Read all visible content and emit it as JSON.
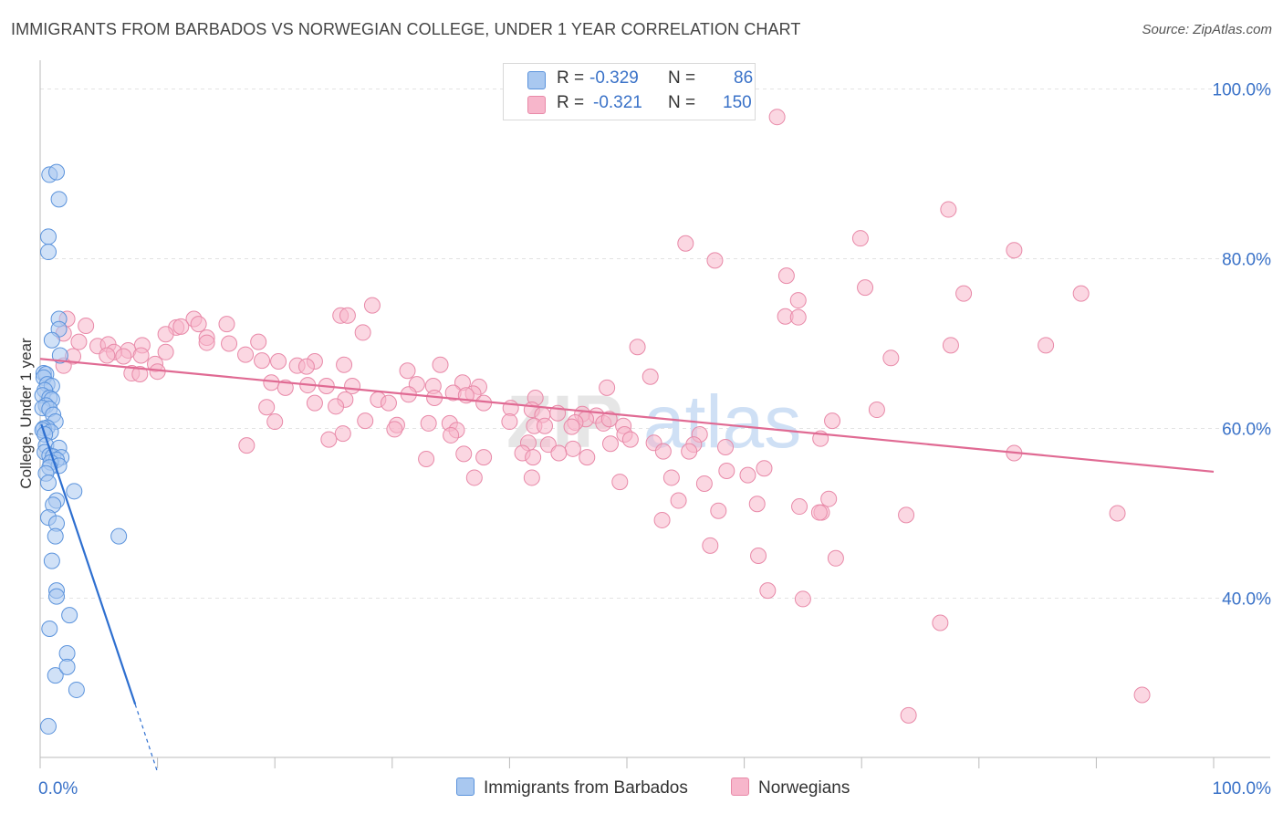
{
  "header": {
    "title": "IMMIGRANTS FROM BARBADOS VS NORWEGIAN COLLEGE, UNDER 1 YEAR CORRELATION CHART",
    "source": "Source: ZipAtlas.com"
  },
  "legend": {
    "rows": [
      {
        "r_label": "R =",
        "r_value": "-0.329",
        "n_label": "N =",
        "n_value": "86",
        "color": "#a9c8f0"
      },
      {
        "r_label": "R =",
        "r_value": "-0.321",
        "n_label": "N =",
        "n_value": "150",
        "color": "#f7b6cb"
      }
    ]
  },
  "bottom_legend": [
    {
      "label": "Immigrants from Barbados",
      "color": "#a9c8f0"
    },
    {
      "label": "Norwegians",
      "color": "#f7b6cb"
    }
  ],
  "colors": {
    "blue_fill": "#a9c8f0",
    "blue_stroke": "#5b93dc",
    "blue_line": "#2e6fd0",
    "pink_fill": "#f7b6cb",
    "pink_stroke": "#e889a8",
    "pink_line": "#e06a93",
    "axis_text": "#3a72c8",
    "grid": "#e3e3e3"
  },
  "chart_data": {
    "type": "scatter",
    "title": "IMMIGRANTS FROM BARBADOS VS NORWEGIAN COLLEGE, UNDER 1 YEAR CORRELATION CHART",
    "xlabel": "",
    "ylabel": "College, Under 1 year",
    "xlim": [
      0,
      100
    ],
    "ylim": [
      18,
      100
    ],
    "x_tick_labels": [
      "0.0%",
      "100.0%"
    ],
    "y_ticks": [
      40,
      60,
      80,
      100
    ],
    "y_tick_labels": [
      "40.0%",
      "60.0%",
      "80.0%",
      "100.0%"
    ],
    "grid": true,
    "legend_position": "top-center",
    "watermark": "ZIPatlas",
    "series": [
      {
        "name": "Immigrants from Barbados",
        "r": -0.329,
        "n": 86,
        "trend": {
          "x": [
            0.1,
            8.1
          ],
          "y": [
            60.5,
            27.5
          ],
          "dashed_to": [
            10.0,
            19.5
          ]
        },
        "points": [
          [
            0.8,
            89.9
          ],
          [
            1.4,
            90.2
          ],
          [
            1.6,
            87.0
          ],
          [
            0.7,
            82.6
          ],
          [
            0.7,
            80.8
          ],
          [
            1.6,
            72.9
          ],
          [
            1.6,
            71.7
          ],
          [
            1.7,
            68.6
          ],
          [
            1.0,
            70.4
          ],
          [
            0.3,
            66.5
          ],
          [
            0.5,
            66.4
          ],
          [
            0.3,
            66.0
          ],
          [
            0.6,
            65.2
          ],
          [
            1.0,
            65.0
          ],
          [
            0.4,
            64.5
          ],
          [
            0.2,
            63.9
          ],
          [
            0.8,
            63.6
          ],
          [
            1.0,
            63.4
          ],
          [
            0.5,
            62.7
          ],
          [
            0.2,
            62.4
          ],
          [
            0.8,
            62.3
          ],
          [
            1.1,
            61.6
          ],
          [
            1.3,
            60.8
          ],
          [
            0.6,
            60.1
          ],
          [
            0.3,
            60.0
          ],
          [
            0.2,
            59.8
          ],
          [
            0.9,
            59.6
          ],
          [
            0.4,
            59.3
          ],
          [
            0.5,
            58.0
          ],
          [
            1.6,
            57.7
          ],
          [
            0.4,
            57.2
          ],
          [
            0.8,
            56.8
          ],
          [
            1.1,
            56.7
          ],
          [
            1.8,
            56.6
          ],
          [
            1.4,
            56.3
          ],
          [
            0.9,
            56.0
          ],
          [
            1.6,
            55.6
          ],
          [
            0.8,
            55.4
          ],
          [
            0.5,
            54.7
          ],
          [
            0.7,
            53.6
          ],
          [
            2.9,
            52.6
          ],
          [
            1.4,
            51.5
          ],
          [
            1.1,
            51.0
          ],
          [
            0.7,
            49.5
          ],
          [
            1.4,
            48.8
          ],
          [
            6.7,
            47.3
          ],
          [
            1.3,
            47.3
          ],
          [
            1.0,
            44.4
          ],
          [
            1.4,
            40.9
          ],
          [
            1.4,
            40.2
          ],
          [
            2.5,
            38.0
          ],
          [
            0.8,
            36.4
          ],
          [
            2.3,
            33.5
          ],
          [
            1.3,
            30.9
          ],
          [
            2.3,
            31.9
          ],
          [
            3.1,
            29.2
          ],
          [
            0.7,
            24.9
          ]
        ]
      },
      {
        "name": "Norwegians",
        "r": -0.321,
        "n": 150,
        "trend": {
          "x": [
            0,
            100
          ],
          "y": [
            68.2,
            54.9
          ]
        },
        "points": [
          [
            62.8,
            96.7
          ],
          [
            77.4,
            85.8
          ],
          [
            69.9,
            82.4
          ],
          [
            55.0,
            81.8
          ],
          [
            83.0,
            81.0
          ],
          [
            57.5,
            79.8
          ],
          [
            63.6,
            78.0
          ],
          [
            70.3,
            76.6
          ],
          [
            64.6,
            75.1
          ],
          [
            78.7,
            75.9
          ],
          [
            88.7,
            75.9
          ],
          [
            28.3,
            74.5
          ],
          [
            25.6,
            73.3
          ],
          [
            26.2,
            73.3
          ],
          [
            63.5,
            73.2
          ],
          [
            64.6,
            73.1
          ],
          [
            2.3,
            72.9
          ],
          [
            13.1,
            72.9
          ],
          [
            11.6,
            71.9
          ],
          [
            13.5,
            72.3
          ],
          [
            15.9,
            72.3
          ],
          [
            12.0,
            72.0
          ],
          [
            27.5,
            71.3
          ],
          [
            3.9,
            72.1
          ],
          [
            10.7,
            71.1
          ],
          [
            14.2,
            70.7
          ],
          [
            2.0,
            71.2
          ],
          [
            3.3,
            70.2
          ],
          [
            8.7,
            69.8
          ],
          [
            4.9,
            69.7
          ],
          [
            5.8,
            69.9
          ],
          [
            7.5,
            69.2
          ],
          [
            14.2,
            70.1
          ],
          [
            16.1,
            70.0
          ],
          [
            18.6,
            70.2
          ],
          [
            77.6,
            69.8
          ],
          [
            50.9,
            69.6
          ],
          [
            85.7,
            69.8
          ],
          [
            6.3,
            69.0
          ],
          [
            10.7,
            69.0
          ],
          [
            5.7,
            68.6
          ],
          [
            8.6,
            68.6
          ],
          [
            7.1,
            68.5
          ],
          [
            17.5,
            68.7
          ],
          [
            2.8,
            68.5
          ],
          [
            18.9,
            68.0
          ],
          [
            72.5,
            68.3
          ],
          [
            20.3,
            67.9
          ],
          [
            23.4,
            67.9
          ],
          [
            9.8,
            67.6
          ],
          [
            21.9,
            67.4
          ],
          [
            25.9,
            67.5
          ],
          [
            34.1,
            67.5
          ],
          [
            2.0,
            67.4
          ],
          [
            22.7,
            67.3
          ],
          [
            10.0,
            66.7
          ],
          [
            31.3,
            66.8
          ],
          [
            7.8,
            66.5
          ],
          [
            8.5,
            66.4
          ],
          [
            52.0,
            66.1
          ],
          [
            19.7,
            65.4
          ],
          [
            22.8,
            65.1
          ],
          [
            36.0,
            65.4
          ],
          [
            32.1,
            65.2
          ],
          [
            33.5,
            65.0
          ],
          [
            26.6,
            65.0
          ],
          [
            24.4,
            65.0
          ],
          [
            35.2,
            64.2
          ],
          [
            37.4,
            64.9
          ],
          [
            48.3,
            64.8
          ],
          [
            20.9,
            64.8
          ],
          [
            36.9,
            64.1
          ],
          [
            31.4,
            64.0
          ],
          [
            36.3,
            63.9
          ],
          [
            33.6,
            63.6
          ],
          [
            42.2,
            63.6
          ],
          [
            26.0,
            63.4
          ],
          [
            28.8,
            63.4
          ],
          [
            37.8,
            63.0
          ],
          [
            29.7,
            63.0
          ],
          [
            23.4,
            63.0
          ],
          [
            19.3,
            62.5
          ],
          [
            25.2,
            62.6
          ],
          [
            40.1,
            62.4
          ],
          [
            41.9,
            62.2
          ],
          [
            71.3,
            62.2
          ],
          [
            44.1,
            61.8
          ],
          [
            42.8,
            61.6
          ],
          [
            46.2,
            61.7
          ],
          [
            47.4,
            61.5
          ],
          [
            46.5,
            61.1
          ],
          [
            48.0,
            60.6
          ],
          [
            48.5,
            61.1
          ],
          [
            27.7,
            60.9
          ],
          [
            34.9,
            60.6
          ],
          [
            40.0,
            60.8
          ],
          [
            20.0,
            60.8
          ],
          [
            45.6,
            60.7
          ],
          [
            30.4,
            60.4
          ],
          [
            33.1,
            60.6
          ],
          [
            42.1,
            60.3
          ],
          [
            43.0,
            60.3
          ],
          [
            67.5,
            60.9
          ],
          [
            49.7,
            60.3
          ],
          [
            45.3,
            60.2
          ],
          [
            30.2,
            59.9
          ],
          [
            35.5,
            59.8
          ],
          [
            25.8,
            59.4
          ],
          [
            49.8,
            59.3
          ],
          [
            56.2,
            59.3
          ],
          [
            35.0,
            59.2
          ],
          [
            50.3,
            58.7
          ],
          [
            24.6,
            58.7
          ],
          [
            66.5,
            58.8
          ],
          [
            52.3,
            58.3
          ],
          [
            43.3,
            58.1
          ],
          [
            41.6,
            58.3
          ],
          [
            48.6,
            58.2
          ],
          [
            17.6,
            58.0
          ],
          [
            55.7,
            58.1
          ],
          [
            58.4,
            57.8
          ],
          [
            45.4,
            57.6
          ],
          [
            55.3,
            57.3
          ],
          [
            44.2,
            57.1
          ],
          [
            41.1,
            57.1
          ],
          [
            53.1,
            57.3
          ],
          [
            36.1,
            57.0
          ],
          [
            83.0,
            57.1
          ],
          [
            32.9,
            56.4
          ],
          [
            37.8,
            56.6
          ],
          [
            42.0,
            56.6
          ],
          [
            46.6,
            56.6
          ],
          [
            58.5,
            55.0
          ],
          [
            61.7,
            55.3
          ],
          [
            53.8,
            54.2
          ],
          [
            60.3,
            54.5
          ],
          [
            64.7,
            50.8
          ],
          [
            41.9,
            54.2
          ],
          [
            37.0,
            54.2
          ],
          [
            49.4,
            53.7
          ],
          [
            56.6,
            53.5
          ],
          [
            54.4,
            51.5
          ],
          [
            61.1,
            51.1
          ],
          [
            67.2,
            51.7
          ],
          [
            66.6,
            50.1
          ],
          [
            57.8,
            50.3
          ],
          [
            73.8,
            49.8
          ],
          [
            91.8,
            50.0
          ],
          [
            66.4,
            50.1
          ],
          [
            53.0,
            49.2
          ],
          [
            57.1,
            46.2
          ],
          [
            61.2,
            45.0
          ],
          [
            67.8,
            44.7
          ],
          [
            62.0,
            40.9
          ],
          [
            65.0,
            39.9
          ],
          [
            76.7,
            37.1
          ],
          [
            74.0,
            26.2
          ],
          [
            93.9,
            28.6
          ]
        ]
      }
    ]
  }
}
